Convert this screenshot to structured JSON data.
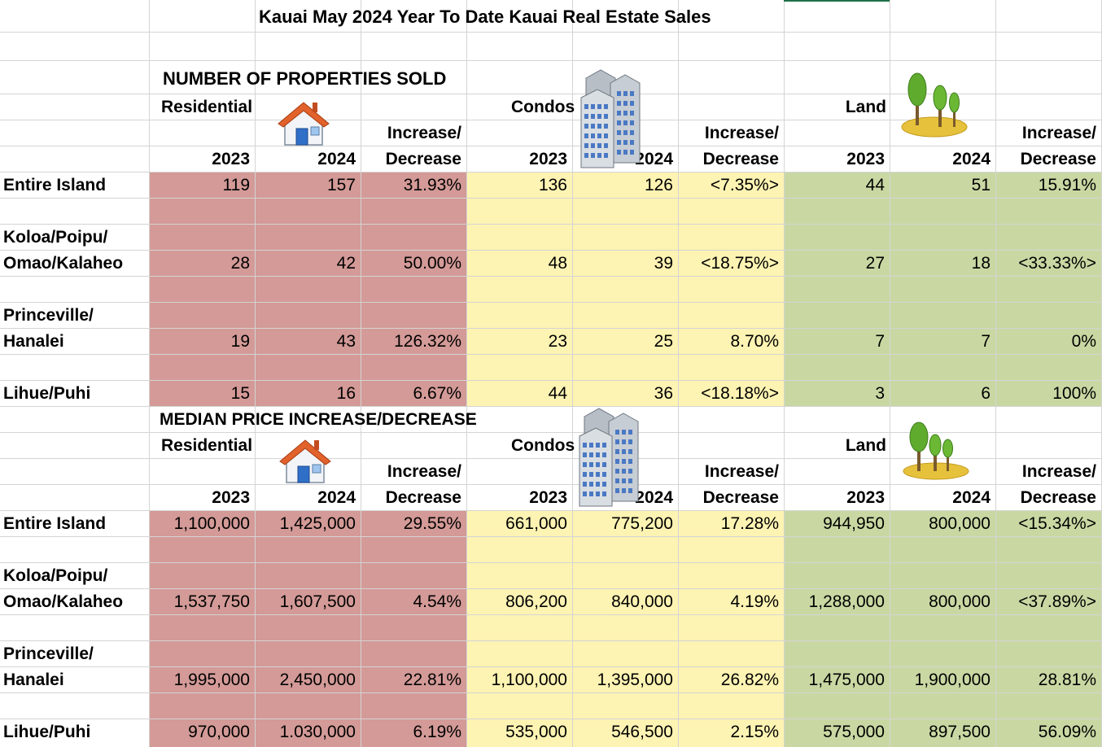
{
  "title": "Kauai May 2024 Year To Date Kauai Real Estate Sales",
  "sections": [
    {
      "heading": "NUMBER OF PROPERTIES SOLD",
      "groups": [
        "Residential",
        "Condos",
        "Land"
      ],
      "inc_top": "Increase/",
      "inc_bottom": "Decrease",
      "y1": "2023",
      "y2": "2024",
      "rows": [
        {
          "label1": "Entire Island",
          "label2": "",
          "values": [
            "119",
            "157",
            "31.93%",
            "136",
            "126",
            "<7.35%>",
            "44",
            "51",
            "15.91%"
          ]
        },
        {
          "label1": "Koloa/Poipu/",
          "label2": "Omao/Kalaheo",
          "values": [
            "28",
            "42",
            "50.00%",
            "48",
            "39",
            "<18.75%>",
            "27",
            "18",
            "<33.33%>"
          ]
        },
        {
          "label1": "Princeville/",
          "label2": "Hanalei",
          "values": [
            "19",
            "43",
            "126.32%",
            "23",
            "25",
            "8.70%",
            "7",
            "7",
            "0%"
          ]
        },
        {
          "label1": "Lihue/Puhi",
          "label2": "",
          "values": [
            "15",
            "16",
            "6.67%",
            "44",
            "36",
            "<18.18%>",
            "3",
            "6",
            "100%"
          ]
        }
      ]
    },
    {
      "heading": "MEDIAN PRICE INCREASE/DECREASE",
      "groups": [
        "Residential",
        "Condos",
        "Land"
      ],
      "inc_top": "Increase/",
      "inc_bottom": "Decrease",
      "y1": "2023",
      "y2": "2024",
      "rows": [
        {
          "label1": "Entire Island",
          "label2": "",
          "values": [
            "1,100,000",
            "1,425,000",
            "29.55%",
            "661,000",
            "775,200",
            "17.28%",
            "944,950",
            "800,000",
            "<15.34%>"
          ]
        },
        {
          "label1": "Koloa/Poipu/",
          "label2": "Omao/Kalaheo",
          "values": [
            "1,537,750",
            "1,607,500",
            "4.54%",
            "806,200",
            "840,000",
            "4.19%",
            "1,288,000",
            "800,000",
            "<37.89%>"
          ]
        },
        {
          "label1": "Princeville/",
          "label2": "Hanalei",
          "values": [
            "1,995,000",
            "2,450,000",
            "22.81%",
            "1,100,000",
            "1,395,000",
            "26.82%",
            "1,475,000",
            "1,900,000",
            "28.81%"
          ]
        },
        {
          "label1": "Lihue/Puhi",
          "label2": "",
          "values": [
            "970,000",
            "1.030,000",
            "6.19%",
            "535,000",
            "546,500",
            "2.15%",
            "575,000",
            "897,500",
            "56.09%"
          ]
        }
      ]
    }
  ],
  "icons": [
    "house-icon",
    "buildings-icon",
    "trees-icon"
  ],
  "colors": {
    "residential": "#d39a97",
    "condos": "#fdf3b3",
    "land": "#c9d8a3",
    "grid": "#d4d4d4"
  }
}
